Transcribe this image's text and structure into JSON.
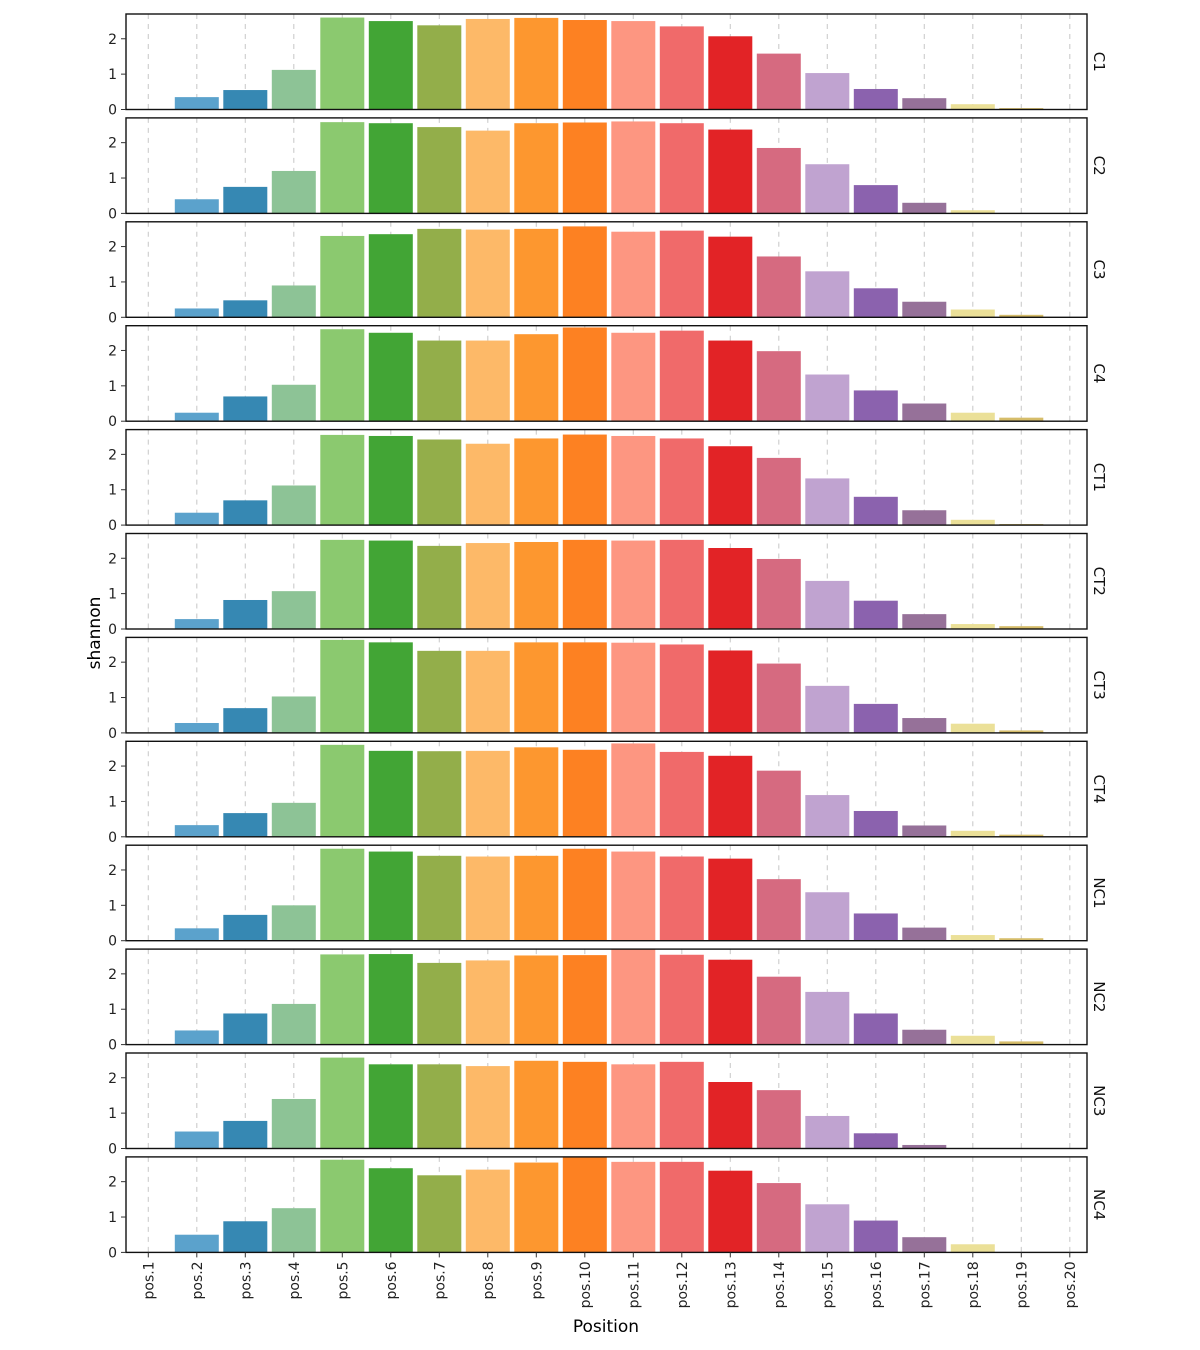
{
  "chart_data": {
    "type": "bar",
    "xlabel": "Position",
    "ylabel": "shannon",
    "ylim": [
      0,
      2.7
    ],
    "yticks": [
      0,
      1,
      2
    ],
    "grid": "vertical dashed",
    "categories": [
      "pos.1",
      "pos.2",
      "pos.3",
      "pos.4",
      "pos.5",
      "pos.6",
      "pos.7",
      "pos.8",
      "pos.9",
      "pos.10",
      "pos.11",
      "pos.12",
      "pos.13",
      "pos.14",
      "pos.15",
      "pos.16",
      "pos.17",
      "pos.18",
      "pos.19",
      "pos.20"
    ],
    "colors": [
      "#a6cee3",
      "#5ba2cc",
      "#3688b3",
      "#8dc396",
      "#8bc96f",
      "#42a535",
      "#93ae4a",
      "#fdb968",
      "#fd972f",
      "#fd8122",
      "#fd9681",
      "#f06a6a",
      "#e22326",
      "#d66a80",
      "#c0a3d0",
      "#8b62ae",
      "#967199",
      "#ebe098",
      "#d6bd6a",
      "#b15928"
    ],
    "panels": [
      {
        "label": "C1",
        "values": [
          0,
          0.35,
          0.55,
          1.12,
          2.6,
          2.5,
          2.38,
          2.56,
          2.59,
          2.53,
          2.5,
          2.35,
          2.07,
          1.58,
          1.03,
          0.58,
          0.32,
          0.15,
          0.04,
          0
        ]
      },
      {
        "label": "C2",
        "values": [
          0,
          0.4,
          0.75,
          1.2,
          2.58,
          2.55,
          2.44,
          2.34,
          2.55,
          2.57,
          2.6,
          2.55,
          2.37,
          1.85,
          1.39,
          0.8,
          0.3,
          0.09,
          0,
          0
        ]
      },
      {
        "label": "C3",
        "values": [
          0,
          0.25,
          0.48,
          0.9,
          2.3,
          2.35,
          2.5,
          2.48,
          2.5,
          2.57,
          2.42,
          2.45,
          2.28,
          1.72,
          1.3,
          0.82,
          0.44,
          0.22,
          0.07,
          0
        ]
      },
      {
        "label": "C4",
        "values": [
          0,
          0.24,
          0.7,
          1.03,
          2.6,
          2.5,
          2.28,
          2.28,
          2.46,
          2.65,
          2.5,
          2.56,
          2.28,
          1.98,
          1.32,
          0.87,
          0.5,
          0.24,
          0.1,
          0
        ]
      },
      {
        "label": "CT1",
        "values": [
          0,
          0.35,
          0.7,
          1.12,
          2.55,
          2.52,
          2.42,
          2.3,
          2.45,
          2.56,
          2.52,
          2.45,
          2.23,
          1.9,
          1.32,
          0.8,
          0.42,
          0.15,
          0.03,
          0
        ]
      },
      {
        "label": "CT2",
        "values": [
          0,
          0.28,
          0.82,
          1.07,
          2.52,
          2.5,
          2.35,
          2.43,
          2.46,
          2.52,
          2.5,
          2.52,
          2.29,
          1.98,
          1.36,
          0.8,
          0.42,
          0.14,
          0.08,
          0
        ]
      },
      {
        "label": "CT3",
        "values": [
          0,
          0.28,
          0.7,
          1.03,
          2.63,
          2.56,
          2.32,
          2.32,
          2.56,
          2.56,
          2.55,
          2.5,
          2.33,
          1.96,
          1.33,
          0.82,
          0.42,
          0.26,
          0.07,
          0
        ]
      },
      {
        "label": "CT4",
        "values": [
          0,
          0.33,
          0.67,
          0.96,
          2.6,
          2.43,
          2.42,
          2.43,
          2.53,
          2.46,
          2.64,
          2.4,
          2.29,
          1.87,
          1.18,
          0.73,
          0.32,
          0.17,
          0.06,
          0
        ]
      },
      {
        "label": "NC1",
        "values": [
          0,
          0.35,
          0.73,
          1.0,
          2.6,
          2.52,
          2.4,
          2.38,
          2.4,
          2.6,
          2.52,
          2.38,
          2.32,
          1.74,
          1.37,
          0.77,
          0.37,
          0.16,
          0.07,
          0
        ]
      },
      {
        "label": "NC2",
        "values": [
          0,
          0.4,
          0.88,
          1.15,
          2.55,
          2.56,
          2.31,
          2.38,
          2.52,
          2.53,
          2.7,
          2.54,
          2.4,
          1.92,
          1.49,
          0.88,
          0.42,
          0.25,
          0.09,
          0
        ]
      },
      {
        "label": "NC3",
        "values": [
          0,
          0.48,
          0.78,
          1.4,
          2.57,
          2.38,
          2.38,
          2.33,
          2.48,
          2.45,
          2.38,
          2.45,
          1.88,
          1.65,
          0.92,
          0.43,
          0.1,
          0,
          0,
          0
        ]
      },
      {
        "label": "NC4",
        "values": [
          0,
          0.5,
          0.88,
          1.25,
          2.62,
          2.38,
          2.18,
          2.34,
          2.54,
          2.7,
          2.56,
          2.56,
          2.31,
          1.96,
          1.36,
          0.9,
          0.43,
          0.23,
          0,
          0
        ]
      }
    ]
  }
}
